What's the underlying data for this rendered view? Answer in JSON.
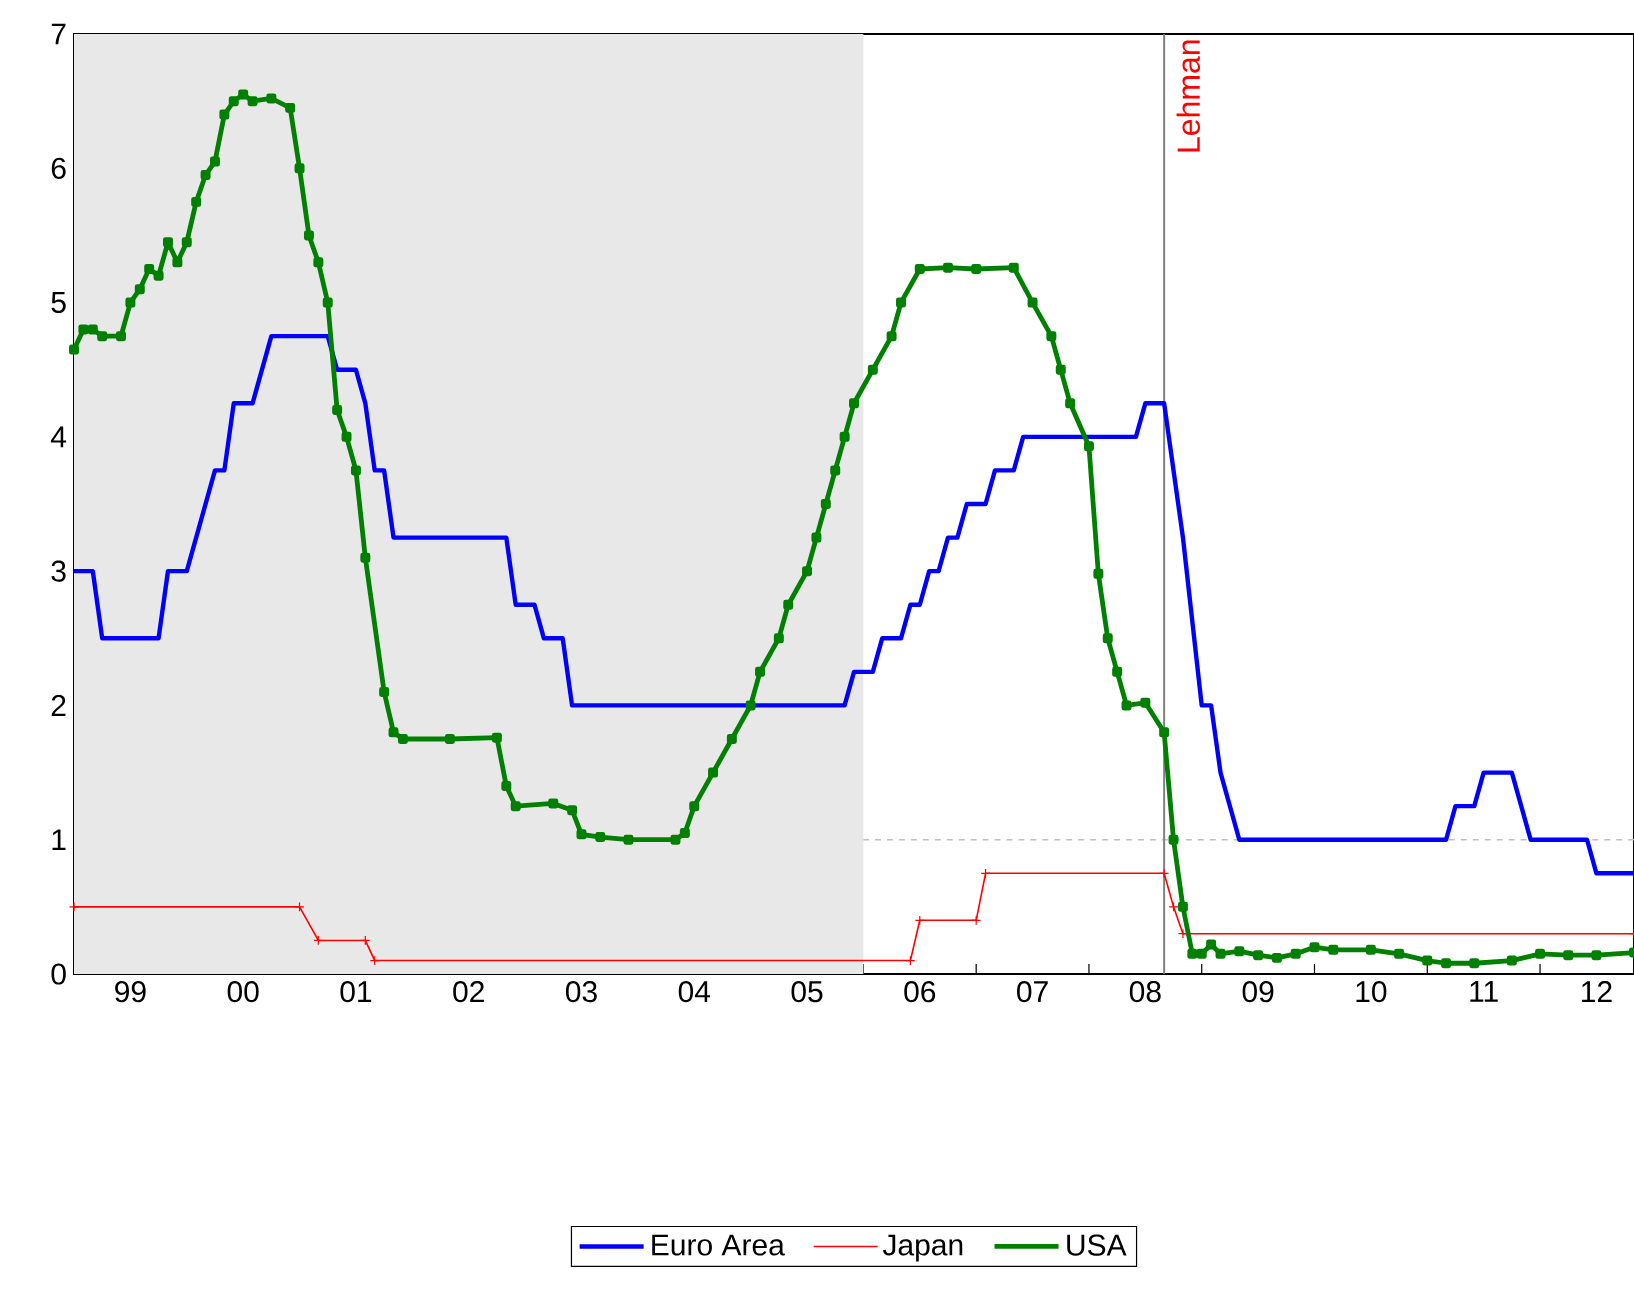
{
  "chart_data": {
    "type": "line",
    "xlim": [
      "1999-01",
      "2012-11"
    ],
    "ylim": [
      0,
      7
    ],
    "yticks": [
      0,
      1,
      2,
      3,
      4,
      5,
      6,
      7
    ],
    "xticks": [
      {
        "value": "1999",
        "label": null
      },
      {
        "value": "2000",
        "label": null
      },
      {
        "value": "2001",
        "label": null
      },
      {
        "value": "2002",
        "label": null
      },
      {
        "value": "2003",
        "label": null
      },
      {
        "value": "2004",
        "label": null
      },
      {
        "value": "2005",
        "label": null
      },
      {
        "value": "2006",
        "label": null
      },
      {
        "value": "2007",
        "label": null
      },
      {
        "value": "2008",
        "label": null
      },
      {
        "value": "2009",
        "label": null
      },
      {
        "value": "2010",
        "label": null
      },
      {
        "value": "2011",
        "label": null
      },
      {
        "value": "2012",
        "label": null
      },
      {
        "value": "1999-07",
        "label": "99"
      },
      {
        "value": "2000-07",
        "label": "00"
      },
      {
        "value": "2001-07",
        "label": "01"
      },
      {
        "value": "2002-07",
        "label": "02"
      },
      {
        "value": "2003-07",
        "label": "03"
      },
      {
        "value": "2004-07",
        "label": "04"
      },
      {
        "value": "2005-07",
        "label": "05"
      },
      {
        "value": "2006-07",
        "label": "06"
      },
      {
        "value": "2007-07",
        "label": "07"
      },
      {
        "value": "2008-07",
        "label": "08"
      },
      {
        "value": "2009-07",
        "label": "09"
      },
      {
        "value": "2010-07",
        "label": "10"
      },
      {
        "value": "2011-07",
        "label": "11"
      },
      {
        "value": "2012-07",
        "label": "12"
      }
    ],
    "legend": "bottom",
    "bands": [
      {
        "axis": "x",
        "from": "1999",
        "to": "2006",
        "color": "#e8e8e8"
      }
    ],
    "ref_lines": [
      {
        "axis": "y",
        "value": 1,
        "color": "#c0c0c0",
        "line_style": "dashed"
      },
      {
        "axis": "x",
        "value": "2008-09",
        "label": "Lehman",
        "color": "#808080"
      }
    ],
    "series": [
      {
        "name": "Euro Area",
        "color": "#0000ff",
        "marker": "none",
        "x": [
          "1999-01",
          "1999-03",
          "1999-04",
          "1999-10",
          "1999-11",
          "2000-01",
          "2000-04",
          "2000-05",
          "2000-06",
          "2000-08",
          "2000-10",
          "2001-04",
          "2001-05",
          "2001-07",
          "2001-08",
          "2001-09",
          "2001-10",
          "2001-11",
          "2002-11",
          "2002-12",
          "2003-02",
          "2003-03",
          "2003-05",
          "2003-06",
          "2005-11",
          "2005-12",
          "2006-02",
          "2006-03",
          "2006-05",
          "2006-06",
          "2006-07",
          "2006-08",
          "2006-09",
          "2006-10",
          "2006-11",
          "2006-12",
          "2007-02",
          "2007-03",
          "2007-05",
          "2007-06",
          "2008-06",
          "2008-07",
          "2008-09",
          "2008-11",
          "2009-01",
          "2009-02",
          "2009-03",
          "2009-05",
          "2011-03",
          "2011-04",
          "2011-06",
          "2011-07",
          "2011-10",
          "2011-12",
          "2012-06",
          "2012-07",
          "2012-11"
        ],
        "values": [
          3.0,
          3.0,
          2.5,
          2.5,
          3.0,
          3.0,
          3.75,
          3.75,
          4.25,
          4.25,
          4.75,
          4.75,
          4.5,
          4.5,
          4.25,
          3.75,
          3.75,
          3.25,
          3.25,
          2.75,
          2.75,
          2.5,
          2.5,
          2.0,
          2.0,
          2.25,
          2.25,
          2.5,
          2.5,
          2.75,
          2.75,
          3.0,
          3.0,
          3.25,
          3.25,
          3.5,
          3.5,
          3.75,
          3.75,
          4.0,
          4.0,
          4.25,
          4.25,
          3.25,
          2.0,
          2.0,
          1.5,
          1.0,
          1.0,
          1.25,
          1.25,
          1.5,
          1.5,
          1.0,
          1.0,
          0.75,
          0.75
        ]
      },
      {
        "name": "Japan",
        "color": "#ff0000",
        "marker": "cross",
        "x": [
          "1999-01",
          "2001-01",
          "2001-03",
          "2001-08",
          "2001-09",
          "2006-06",
          "2006-07",
          "2007-01",
          "2007-02",
          "2008-09",
          "2008-10",
          "2008-11",
          "2012-11"
        ],
        "values": [
          0.5,
          0.5,
          0.25,
          0.25,
          0.1,
          0.1,
          0.4,
          0.4,
          0.75,
          0.75,
          0.5,
          0.3,
          0.3
        ]
      },
      {
        "name": "USA",
        "color": "#008000",
        "marker": "square",
        "x": [
          "1999-01",
          "1999-02",
          "1999-03",
          "1999-04",
          "1999-06",
          "1999-07",
          "1999-08",
          "1999-09",
          "1999-10",
          "1999-11",
          "1999-12",
          "2000-01",
          "2000-02",
          "2000-03",
          "2000-04",
          "2000-05",
          "2000-06",
          "2000-07",
          "2000-08",
          "2000-10",
          "2000-12",
          "2001-01",
          "2001-02",
          "2001-03",
          "2001-04",
          "2001-05",
          "2001-06",
          "2001-07",
          "2001-08",
          "2001-10",
          "2001-11",
          "2001-12",
          "2002-05",
          "2002-10",
          "2002-11",
          "2002-12",
          "2003-04",
          "2003-06",
          "2003-07",
          "2003-09",
          "2003-12",
          "2004-05",
          "2004-06",
          "2004-07",
          "2004-09",
          "2004-11",
          "2005-01",
          "2005-02",
          "2005-04",
          "2005-05",
          "2005-07",
          "2005-08",
          "2005-09",
          "2005-10",
          "2005-11",
          "2005-12",
          "2006-02",
          "2006-04",
          "2006-05",
          "2006-07",
          "2006-10",
          "2007-01",
          "2007-05",
          "2007-07",
          "2007-09",
          "2007-10",
          "2007-11",
          "2008-01",
          "2008-02",
          "2008-03",
          "2008-04",
          "2008-05",
          "2008-07",
          "2008-09",
          "2008-10",
          "2008-11",
          "2008-12",
          "2009-01",
          "2009-02",
          "2009-03",
          "2009-05",
          "2009-07",
          "2009-09",
          "2009-11",
          "2010-01",
          "2010-03",
          "2010-07",
          "2010-10",
          "2011-01",
          "2011-03",
          "2011-06",
          "2011-10",
          "2012-01",
          "2012-04",
          "2012-07",
          "2012-11"
        ],
        "values": [
          4.65,
          4.8,
          4.8,
          4.75,
          4.75,
          5.0,
          5.1,
          5.25,
          5.2,
          5.45,
          5.3,
          5.45,
          5.75,
          5.95,
          6.05,
          6.4,
          6.5,
          6.55,
          6.5,
          6.52,
          6.45,
          6.0,
          5.5,
          5.3,
          5.0,
          4.2,
          4.0,
          3.75,
          3.1,
          2.1,
          1.8,
          1.75,
          1.75,
          1.76,
          1.4,
          1.25,
          1.27,
          1.22,
          1.04,
          1.02,
          1.0,
          1.0,
          1.05,
          1.25,
          1.5,
          1.75,
          2.0,
          2.25,
          2.5,
          2.75,
          3.0,
          3.25,
          3.5,
          3.75,
          4.0,
          4.25,
          4.5,
          4.75,
          5.0,
          5.25,
          5.26,
          5.25,
          5.26,
          5.0,
          4.75,
          4.5,
          4.25,
          3.93,
          2.98,
          2.5,
          2.25,
          2.0,
          2.02,
          1.8,
          1.0,
          0.5,
          0.15,
          0.15,
          0.22,
          0.15,
          0.17,
          0.14,
          0.12,
          0.15,
          0.2,
          0.18,
          0.18,
          0.15,
          0.1,
          0.08,
          0.08,
          0.1,
          0.15,
          0.14,
          0.14,
          0.16
        ]
      }
    ]
  }
}
